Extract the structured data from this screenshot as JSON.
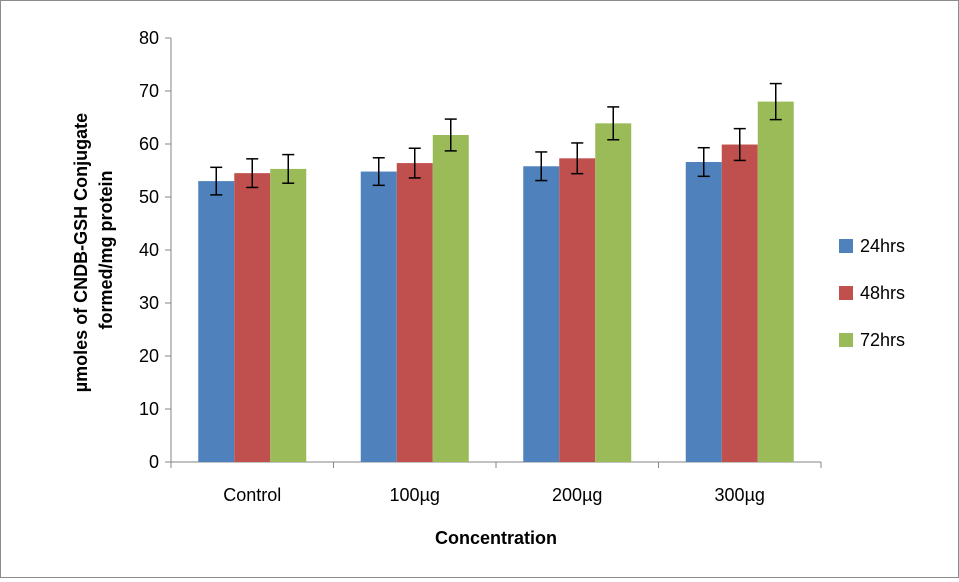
{
  "chart_data": {
    "type": "bar",
    "categories": [
      "Control",
      "100µg",
      "200µg",
      "300µg"
    ],
    "series": [
      {
        "name": "24hrs",
        "color": "#4F81BD",
        "values": [
          53.0,
          54.8,
          55.8,
          56.6
        ],
        "errors": [
          2.6,
          2.6,
          2.7,
          2.7
        ]
      },
      {
        "name": "48hrs",
        "color": "#C0504D",
        "values": [
          54.5,
          56.4,
          57.3,
          59.9
        ],
        "errors": [
          2.7,
          2.8,
          2.9,
          3.0
        ]
      },
      {
        "name": "72hrs",
        "color": "#9BBB59",
        "values": [
          55.3,
          61.7,
          63.9,
          68.0
        ],
        "errors": [
          2.7,
          3.0,
          3.1,
          3.4
        ]
      }
    ],
    "xlabel": "Concentration",
    "ylabel_lines": [
      "µmoles of CNDB-GSH Conjugate",
      "formed/mg protein"
    ],
    "ylim": [
      0,
      80
    ],
    "yticks": [
      0,
      10,
      20,
      30,
      40,
      50,
      60,
      70,
      80
    ],
    "grid": false,
    "legend_position": "right"
  }
}
